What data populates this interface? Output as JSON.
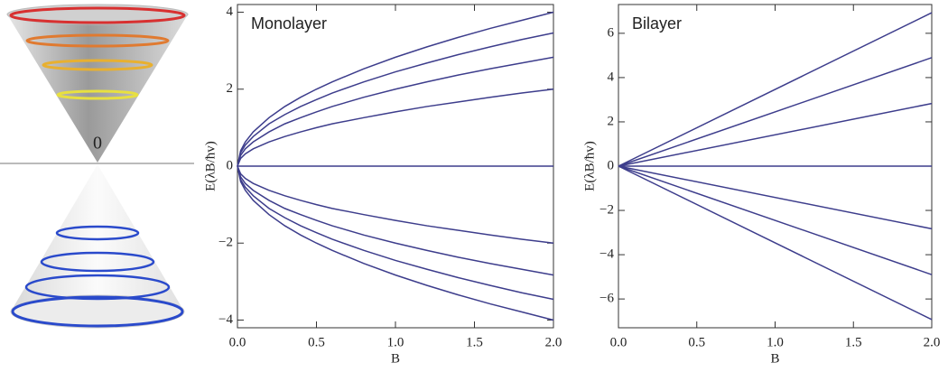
{
  "illustration": {
    "label": "0"
  },
  "chart_data": [
    {
      "type": "line",
      "annotation": "Monolayer",
      "x_label": "B",
      "y_label": "E(λB/ħv)",
      "x": [
        0,
        0.02,
        0.05,
        0.1,
        0.2,
        0.3,
        0.4,
        0.5,
        0.6,
        0.8,
        1.0,
        1.2,
        1.4,
        1.6,
        1.8,
        2.0
      ],
      "series": [
        {
          "color": "#3d3d8c",
          "values": [
            0,
            0.4,
            0.63,
            0.89,
            1.26,
            1.55,
            1.79,
            2,
            2.19,
            2.53,
            2.83,
            3.1,
            3.35,
            3.58,
            3.79,
            4
          ]
        },
        {
          "color": "#3d3d8c",
          "values": [
            0,
            0.35,
            0.55,
            0.77,
            1.1,
            1.34,
            1.55,
            1.73,
            1.9,
            2.19,
            2.45,
            2.68,
            2.9,
            3.1,
            3.29,
            3.46
          ]
        },
        {
          "color": "#3d3d8c",
          "values": [
            0,
            0.28,
            0.45,
            0.63,
            0.89,
            1.1,
            1.26,
            1.41,
            1.55,
            1.79,
            2,
            2.19,
            2.37,
            2.53,
            2.68,
            2.83
          ]
        },
        {
          "color": "#3d3d8c",
          "values": [
            0,
            0.2,
            0.32,
            0.45,
            0.63,
            0.77,
            0.89,
            1,
            1.1,
            1.26,
            1.41,
            1.55,
            1.67,
            1.79,
            1.9,
            2
          ]
        },
        {
          "color": "#3d3d8c",
          "values": [
            0,
            0,
            0,
            0,
            0,
            0,
            0,
            0,
            0,
            0,
            0,
            0,
            0,
            0,
            0,
            0
          ]
        },
        {
          "color": "#3d3d8c",
          "values": [
            0,
            -0.2,
            -0.32,
            -0.45,
            -0.63,
            -0.77,
            -0.89,
            -1,
            -1.1,
            -1.26,
            -1.41,
            -1.55,
            -1.67,
            -1.79,
            -1.9,
            -2
          ]
        },
        {
          "color": "#3d3d8c",
          "values": [
            0,
            -0.28,
            -0.45,
            -0.63,
            -0.89,
            -1.1,
            -1.26,
            -1.41,
            -1.55,
            -1.79,
            -2,
            -2.19,
            -2.37,
            -2.53,
            -2.68,
            -2.83
          ]
        },
        {
          "color": "#3d3d8c",
          "values": [
            0,
            -0.35,
            -0.55,
            -0.77,
            -1.1,
            -1.34,
            -1.55,
            -1.73,
            -1.9,
            -2.19,
            -2.45,
            -2.68,
            -2.9,
            -3.1,
            -3.29,
            -3.46
          ]
        },
        {
          "color": "#3d3d8c",
          "values": [
            0,
            -0.4,
            -0.63,
            -0.89,
            -1.26,
            -1.55,
            -1.79,
            -2,
            -2.19,
            -2.53,
            -2.83,
            -3.1,
            -3.35,
            -3.58,
            -3.79,
            -4
          ]
        }
      ],
      "xlim": [
        0,
        2
      ],
      "ylim": [
        -4.2,
        4.2
      ],
      "xticks": [
        {
          "value": 0,
          "label": "0.0"
        },
        0.5,
        {
          "value": 1,
          "label": "1.0"
        },
        1.5,
        {
          "value": 2,
          "label": "2.0"
        }
      ],
      "yticks": [
        {
          "value": -4,
          "label": "−4"
        },
        {
          "value": -2,
          "label": "−2"
        },
        0,
        2,
        4
      ]
    },
    {
      "type": "line",
      "annotation": "Bilayer",
      "x_label": "B",
      "y_label": "E(λB/ħv)",
      "x": [
        0,
        2.0
      ],
      "series": [
        {
          "color": "#3d3d8c",
          "values": [
            0,
            6.93
          ]
        },
        {
          "color": "#3d3d8c",
          "values": [
            0,
            4.9
          ]
        },
        {
          "color": "#3d3d8c",
          "values": [
            0,
            2.83
          ]
        },
        {
          "color": "#3d3d8c",
          "values": [
            0,
            0
          ]
        },
        {
          "color": "#3d3d8c",
          "values": [
            0,
            -2.83
          ]
        },
        {
          "color": "#3d3d8c",
          "values": [
            0,
            -4.9
          ]
        },
        {
          "color": "#3d3d8c",
          "values": [
            0,
            -6.93
          ]
        }
      ],
      "xlim": [
        0,
        2
      ],
      "ylim": [
        -7.3,
        7.3
      ],
      "xticks": [
        {
          "value": 0,
          "label": "0.0"
        },
        0.5,
        {
          "value": 1,
          "label": "1.0"
        },
        1.5,
        {
          "value": 2,
          "label": "2.0"
        }
      ],
      "yticks": [
        {
          "value": -6,
          "label": "−6"
        },
        {
          "value": -4,
          "label": "−4"
        },
        {
          "value": -2,
          "label": "−2"
        },
        0,
        2,
        4,
        6
      ]
    }
  ]
}
